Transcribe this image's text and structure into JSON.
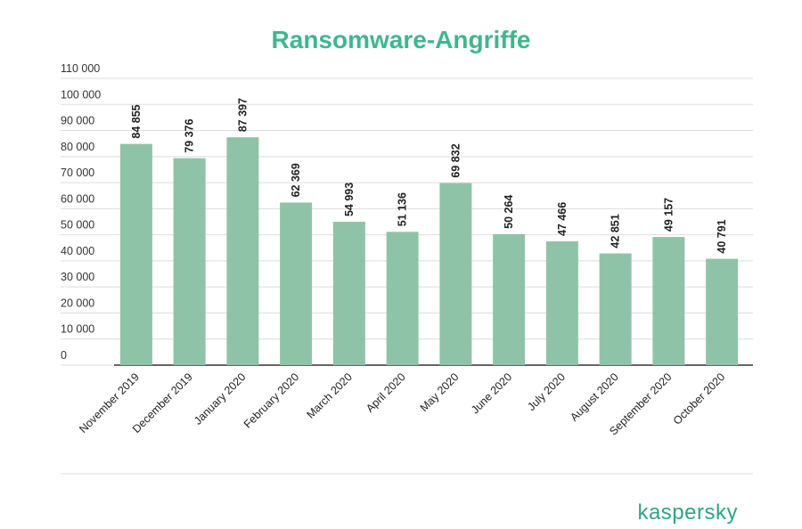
{
  "chart_data": {
    "type": "bar",
    "title": "Ransomware-Angriffe",
    "categories": [
      "November 2019",
      "December 2019",
      "January 2020",
      "February 2020",
      "March 2020",
      "April 2020",
      "May 2020",
      "June 2020",
      "July 2020",
      "August 2020",
      "September 2020",
      "October 2020"
    ],
    "values": [
      84855,
      79376,
      87397,
      62369,
      54993,
      51136,
      69832,
      50264,
      47466,
      42851,
      49157,
      40791
    ],
    "value_labels": [
      "84 855",
      "79 376",
      "87 397",
      "62 369",
      "54 993",
      "51 136",
      "69 832",
      "50 264",
      "47 466",
      "42 851",
      "49 157",
      "40 791"
    ],
    "color": "#8fc3a7",
    "ylim": [
      0,
      110000
    ],
    "yticks": [
      0,
      {
        "value": 10000,
        "label": "10 000"
      },
      {
        "value": 20000,
        "label": "20 000"
      },
      {
        "value": 30000,
        "label": "30 000"
      },
      {
        "value": 40000,
        "label": "40 000"
      },
      {
        "value": 50000,
        "label": "50 000"
      },
      {
        "value": 60000,
        "label": "60 000"
      },
      {
        "value": 70000,
        "label": "70 000"
      },
      {
        "value": 80000,
        "label": "80 000"
      },
      {
        "value": 90000,
        "label": "90 000"
      },
      {
        "value": 100000,
        "label": "100 000"
      },
      {
        "value": 110000,
        "label": "110 000"
      }
    ],
    "grid": true
  },
  "brand": "kaspersky"
}
